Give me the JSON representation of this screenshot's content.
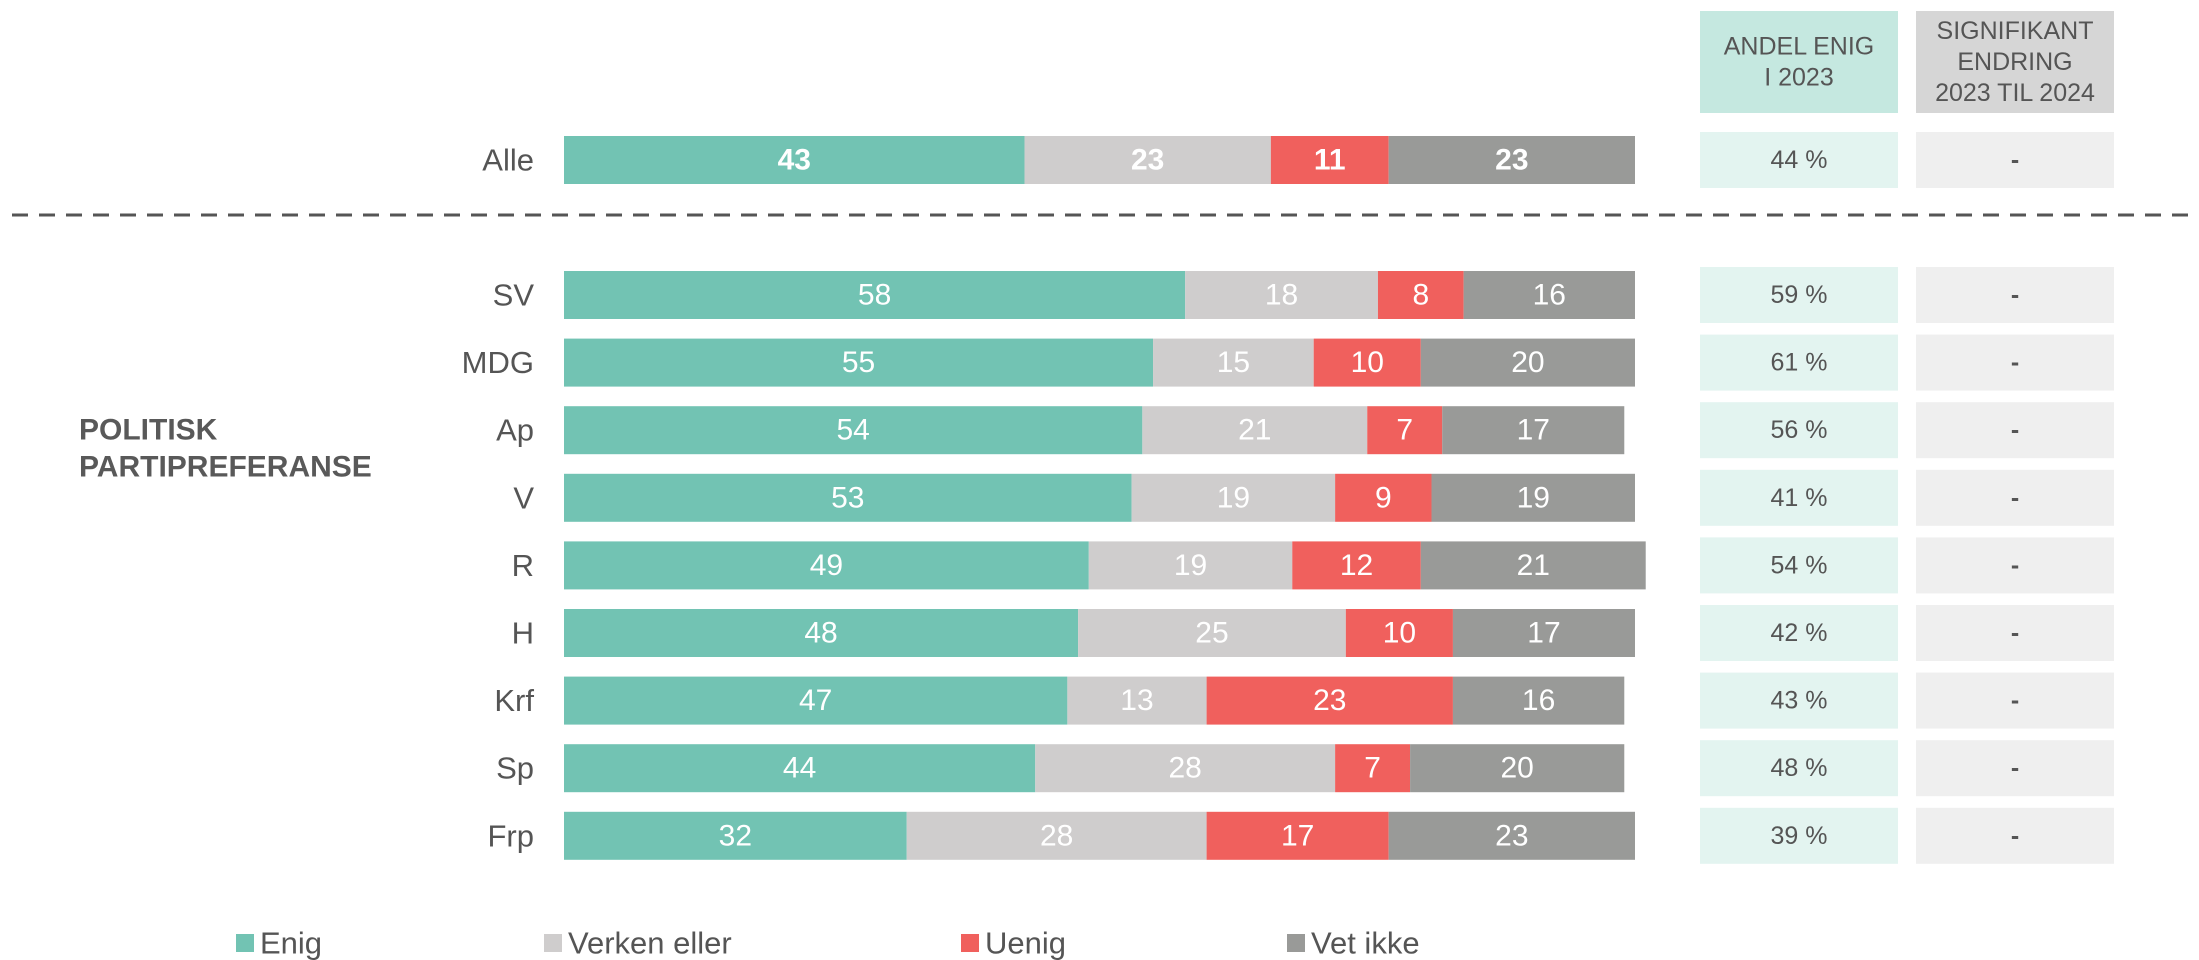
{
  "chart_data": {
    "type": "bar",
    "orientation": "horizontal",
    "stacked": true,
    "group_label": [
      "POLITISK",
      "PARTIPREFERANSE"
    ],
    "categories": [
      "Alle",
      "SV",
      "MDG",
      "Ap",
      "V",
      "R",
      "H",
      "Krf",
      "Sp",
      "Frp"
    ],
    "xlim": [
      0,
      100
    ],
    "series": [
      {
        "name": "Enig",
        "color": "#72c3b3",
        "values": [
          43,
          58,
          55,
          54,
          53,
          49,
          48,
          47,
          44,
          32
        ]
      },
      {
        "name": "Verken eller",
        "color": "#cfcdcd",
        "values": [
          23,
          18,
          15,
          21,
          19,
          19,
          25,
          13,
          28,
          28
        ]
      },
      {
        "name": "Uenig",
        "color": "#f0605d",
        "values": [
          11,
          8,
          10,
          7,
          9,
          12,
          10,
          23,
          7,
          17
        ]
      },
      {
        "name": "Vet ikke",
        "color": "#999a98",
        "values": [
          23,
          16,
          20,
          17,
          19,
          21,
          17,
          16,
          20,
          23
        ]
      }
    ],
    "columns": [
      {
        "header": [
          "ANDEL ENIG",
          "I 2023"
        ],
        "header_color": "#c5e8e0",
        "cell_color": "#e3f4f0",
        "values": [
          "44 %",
          "59 %",
          "61 %",
          "56 %",
          "41 %",
          "54 %",
          "42 %",
          "43 %",
          "48 %",
          "39 %"
        ]
      },
      {
        "header": [
          "SIGNIFIKANT",
          "ENDRING",
          "2023 TIL 2024"
        ],
        "header_color": "#d6d6d6",
        "cell_color": "#efefef",
        "values": [
          "-",
          "-",
          "-",
          "-",
          "-",
          "-",
          "-",
          "-",
          "-",
          "-"
        ]
      }
    ]
  }
}
